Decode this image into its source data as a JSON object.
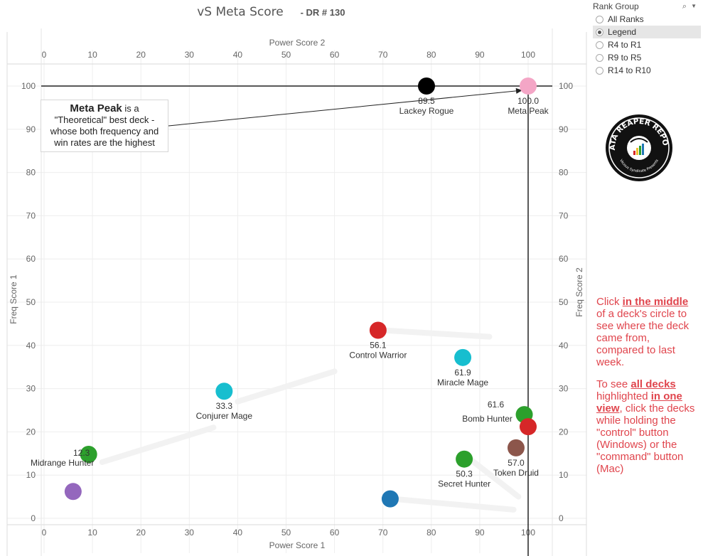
{
  "title": {
    "main": "vS Meta Score",
    "sub": "- DR # 130"
  },
  "filter": {
    "title": "Rank Group",
    "search_icon": "search-icon",
    "options": [
      "All Ranks",
      "Legend",
      "R4 to R1",
      "R9 to R5",
      "R14 to R10"
    ],
    "selected": "Legend"
  },
  "annotation": {
    "bold": "Meta Peak",
    "rest1": " is a",
    "line2": "\"Theoretical\" best deck -",
    "line3": "whose both frequency and",
    "line4": "win rates are the highest"
  },
  "logo": {
    "text_top": "DATA REAPER REPORT",
    "text_bottom": "Vicious Syndicate Presents"
  },
  "instructions": {
    "p1_pre": "Click ",
    "p1_link": "in the middle",
    "p1_post": " of a deck's circle to see where the deck came from, compared to last week.",
    "p2_pre": "To see ",
    "p2_link1": "all decks",
    "p2_mid": " highlighted ",
    "p2_link2": "in one view",
    "p2_post": ", click the decks while holding the \"control\" button (Windows) or the \"command\" button (Mac)"
  },
  "colors": {
    "black": "#000000",
    "pink": "#f4a6c6",
    "red": "#d62728",
    "cyan": "#17becf",
    "green": "#2ca02c",
    "brown": "#8c564b",
    "blue": "#1f77b4",
    "purple": "#9467bd",
    "accent_text": "#e0454d"
  },
  "chart_data": {
    "type": "scatter",
    "title": "vS Meta Score",
    "xlabel_bottom": "Power Score 1",
    "xlabel_top": "Power Score 2",
    "ylabel_left": "Freq Score 1",
    "ylabel_right": "Freq Score 2",
    "xlim": [
      0,
      105
    ],
    "ylim": [
      0,
      105
    ],
    "xticks": [
      0,
      10,
      20,
      30,
      40,
      50,
      60,
      70,
      80,
      90,
      100
    ],
    "yticks": [
      0,
      10,
      20,
      30,
      40,
      50,
      60,
      70,
      80,
      90,
      100
    ],
    "reference_lines": {
      "x": 100,
      "y": 100
    },
    "points": [
      {
        "name": "Lackey Rogue",
        "score": "89.5",
        "x": 79,
        "y": 100,
        "color": "#000000",
        "label_pos": "below"
      },
      {
        "name": "Meta Peak",
        "score": "100.0",
        "x": 100,
        "y": 100,
        "color": "#f4a6c6",
        "label_pos": "below"
      },
      {
        "name": "Control Warrior",
        "score": "56.1",
        "x": 69,
        "y": 43.5,
        "color": "#d62728",
        "label_pos": "below"
      },
      {
        "name": "Miracle Mage",
        "score": "61.9",
        "x": 86.5,
        "y": 37.2,
        "color": "#17becf",
        "label_pos": "below"
      },
      {
        "name": "Conjurer Mage",
        "score": "33.3",
        "x": 37.2,
        "y": 29.4,
        "color": "#17becf",
        "label_pos": "below"
      },
      {
        "name": "Bomb Hunter",
        "score": "61.6",
        "x": 99.2,
        "y": 24,
        "color": "#2ca02c",
        "label_pos": "left"
      },
      {
        "name": "",
        "score": "",
        "x": 100,
        "y": 21.2,
        "color": "#d62728",
        "label_pos": "none"
      },
      {
        "name": "Midrange Hunter",
        "score": "12.3",
        "x": 9.2,
        "y": 14.8,
        "color": "#2ca02c",
        "label_pos": "left"
      },
      {
        "name": "Token Druid",
        "score": "57.0",
        "x": 97.5,
        "y": 16.3,
        "color": "#8c564b",
        "label_pos": "below"
      },
      {
        "name": "Secret Hunter",
        "score": "50.3",
        "x": 86.8,
        "y": 13.7,
        "color": "#2ca02c",
        "label_pos": "below"
      },
      {
        "name": "",
        "score": "",
        "x": 6,
        "y": 6.2,
        "color": "#9467bd",
        "label_pos": "none"
      },
      {
        "name": "",
        "score": "",
        "x": 71.5,
        "y": 4.5,
        "color": "#1f77b4",
        "label_pos": "none"
      }
    ]
  }
}
